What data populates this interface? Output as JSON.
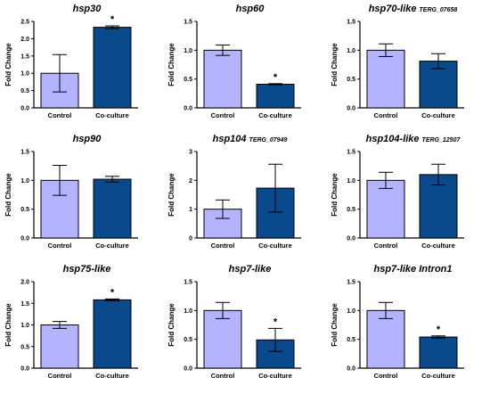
{
  "colors": {
    "control": "#b3b3ff",
    "coculture": "#0a4a8c",
    "axis": "#000000"
  },
  "chart_data": [
    {
      "type": "bar",
      "title": "hsp30",
      "title_suffix": "",
      "ylabel": "Fold Change",
      "categories": [
        "Control",
        "Co-culture"
      ],
      "values": [
        1.0,
        2.33
      ],
      "errors": [
        0.54,
        0.04
      ],
      "significant": [
        false,
        true
      ],
      "ylim": [
        0,
        2.5
      ],
      "yticks": [
        "0.0",
        "0.5",
        "1.0",
        "1.5",
        "2.0",
        "2.5"
      ],
      "ytick_step": 0.5
    },
    {
      "type": "bar",
      "title": "hsp60",
      "title_suffix": "",
      "ylabel": "Fold Change",
      "categories": [
        "Control",
        "Co-culture"
      ],
      "values": [
        1.0,
        0.41
      ],
      "errors": [
        0.09,
        0.01
      ],
      "significant": [
        false,
        true
      ],
      "ylim": [
        0,
        1.5
      ],
      "yticks": [
        "0.0",
        "0.5",
        "1.0",
        "1.5"
      ],
      "ytick_step": 0.5
    },
    {
      "type": "bar",
      "title": "hsp70-like",
      "title_suffix": "TERG_07658",
      "ylabel": "Fold Change",
      "categories": [
        "Control",
        "Co-culture"
      ],
      "values": [
        1.0,
        0.81
      ],
      "errors": [
        0.11,
        0.13
      ],
      "significant": [
        false,
        false
      ],
      "ylim": [
        0,
        1.5
      ],
      "yticks": [
        "0.0",
        "0.5",
        "1.0",
        "1.5"
      ],
      "ytick_step": 0.5
    },
    {
      "type": "bar",
      "title": "hsp90",
      "title_suffix": "",
      "ylabel": "Fold Change",
      "categories": [
        "Control",
        "Co-culture"
      ],
      "values": [
        1.0,
        1.02
      ],
      "errors": [
        0.26,
        0.05
      ],
      "significant": [
        false,
        false
      ],
      "ylim": [
        0,
        1.5
      ],
      "yticks": [
        "0.0",
        "0.5",
        "1.0",
        "1.5"
      ],
      "ytick_step": 0.5
    },
    {
      "type": "bar",
      "title": "hsp104",
      "title_suffix": "TERG_07949",
      "ylabel": "Fold Change",
      "categories": [
        "Control",
        "Co-culture"
      ],
      "values": [
        1.0,
        1.73
      ],
      "errors": [
        0.32,
        0.83
      ],
      "significant": [
        false,
        false
      ],
      "ylim": [
        0,
        3
      ],
      "yticks": [
        "0",
        "1",
        "2",
        "3"
      ],
      "ytick_step": 1
    },
    {
      "type": "bar",
      "title": "hsp104-like",
      "title_suffix": "TERG_12507",
      "ylabel": "Fold Change",
      "categories": [
        "Control",
        "Co-culture"
      ],
      "values": [
        1.0,
        1.1
      ],
      "errors": [
        0.14,
        0.18
      ],
      "significant": [
        false,
        false
      ],
      "ylim": [
        0,
        1.5
      ],
      "yticks": [
        "0.0",
        "0.5",
        "1.0",
        "1.5"
      ],
      "ytick_step": 0.5
    },
    {
      "type": "bar",
      "title": "hsp75-like",
      "title_suffix": "",
      "ylabel": "Fold Change",
      "categories": [
        "Control",
        "Co-culture"
      ],
      "values": [
        1.0,
        1.58
      ],
      "errors": [
        0.08,
        0.02
      ],
      "significant": [
        false,
        true
      ],
      "ylim": [
        0,
        2.0
      ],
      "yticks": [
        "0.0",
        "0.5",
        "1.0",
        "1.5",
        "2.0"
      ],
      "ytick_step": 0.5
    },
    {
      "type": "bar",
      "title": "hsp7-like",
      "title_suffix": "",
      "ylabel": "Fold Change",
      "categories": [
        "Control",
        "Co-culture"
      ],
      "values": [
        1.0,
        0.49
      ],
      "errors": [
        0.14,
        0.2
      ],
      "significant": [
        false,
        true
      ],
      "ylim": [
        0,
        1.5
      ],
      "yticks": [
        "0.0",
        "0.5",
        "1.0",
        "1.5"
      ],
      "ytick_step": 0.5
    },
    {
      "type": "bar",
      "title": "hsp7-like Intron1",
      "title_suffix": "",
      "ylabel": "Fold Change",
      "categories": [
        "Control",
        "Co-culture"
      ],
      "values": [
        1.0,
        0.54
      ],
      "errors": [
        0.14,
        0.02
      ],
      "significant": [
        false,
        true
      ],
      "ylim": [
        0,
        1.5
      ],
      "yticks": [
        "0.0",
        "0.5",
        "1.0",
        "1.5"
      ],
      "ytick_step": 0.5
    }
  ]
}
